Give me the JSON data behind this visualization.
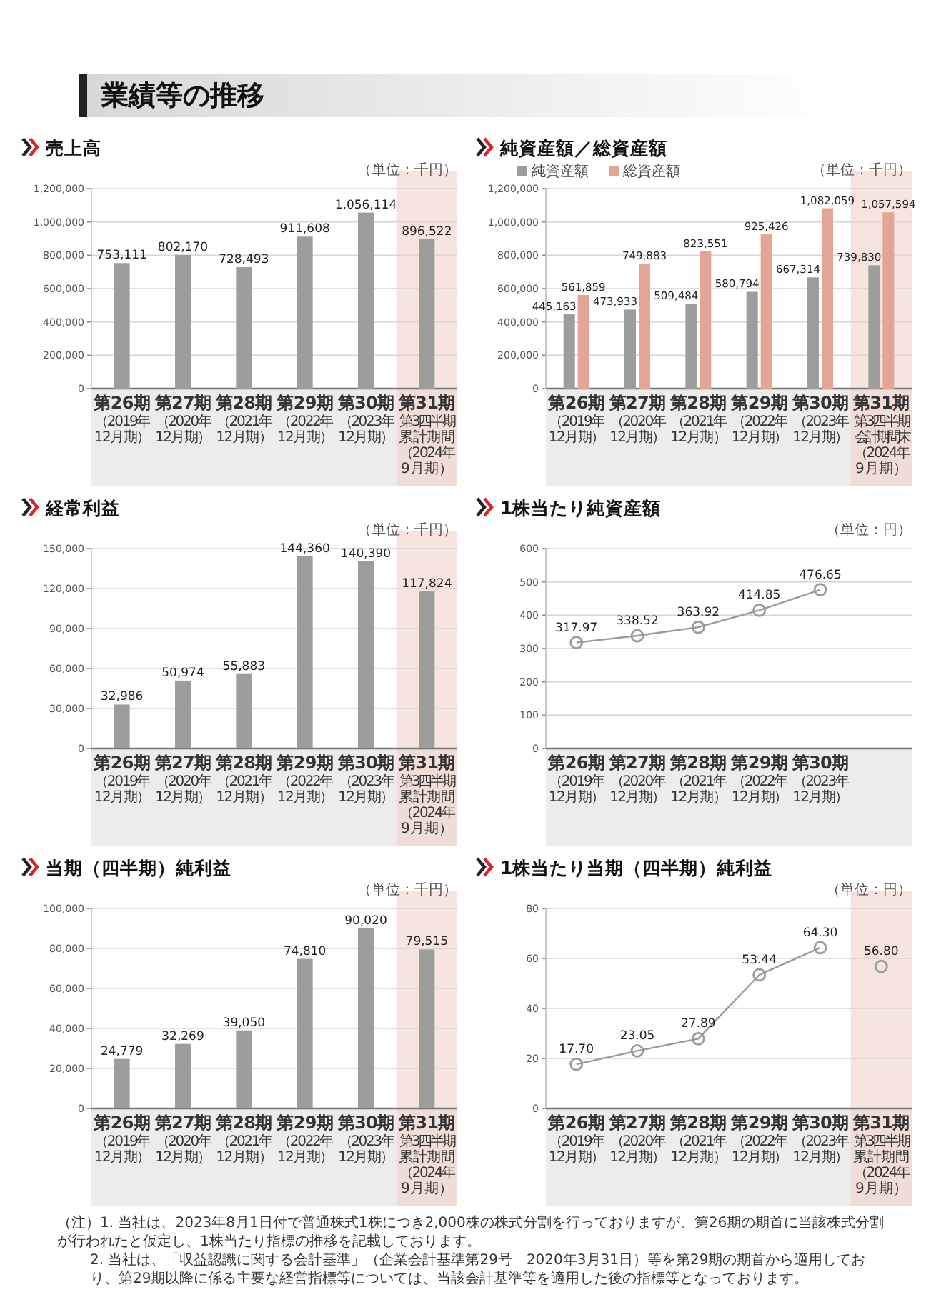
{
  "chart_data": [
    {
      "type": "other",
      "title": "業績等の推移"
    },
    {
      "type": "bar",
      "title": "売上高",
      "categories": [
        "第26期（2019年12月期）",
        "第27期（2020年12月期）",
        "第28期（2021年12月期）",
        "第29期（2022年12月期）",
        "第30期（2023年12月期）",
        "第31期第3四半期累計期間（2024年9月期）"
      ],
      "series": [
        {
          "color": "#9d9d9d",
          "values": [
            753111,
            802170,
            728493,
            911608,
            1056114,
            896522
          ],
          "value_labels": [
            "753,111",
            "802,170",
            "728,493",
            "911,608",
            "1,056,114",
            "896,522"
          ]
        }
      ],
      "ylim": [
        0,
        1200000
      ],
      "yticks": [
        0,
        {
          "value": 200000,
          "label": "200,000"
        },
        {
          "value": 400000,
          "label": "400,000"
        },
        {
          "value": 600000,
          "label": "600,000"
        },
        {
          "value": 800000,
          "label": "800,000"
        },
        {
          "value": 1000000,
          "label": "1,000,000"
        },
        {
          "value": 1200000,
          "label": "1,200,000"
        }
      ],
      "grid": "y",
      "annotations": [
        "（単位：千円）"
      ],
      "bands": [
        {
          "axis": "x",
          "from": "第31期第3四半期累計期間（2024年9月期）",
          "to": "第31期第3四半期累計期間（2024年9月期）",
          "color": "#f5d5cd"
        }
      ]
    },
    {
      "type": "bar",
      "title": "純資産額／総資産額",
      "categories": [
        "第26期（2019年12月期）",
        "第27期（2020年12月期）",
        "第28期（2021年12月期）",
        "第29期（2022年12月期）",
        "第30期（2023年12月期）",
        "第31期第3四半期会計期間末（2024年9月期）"
      ],
      "series": [
        {
          "name": "純資産額",
          "color": "#9d9d9d",
          "values": [
            445163,
            473933,
            509484,
            580794,
            667314,
            739830
          ],
          "value_labels": [
            "445,163",
            "473,933",
            "509,484",
            "580,794",
            "667,314",
            "739,830"
          ]
        },
        {
          "name": "総資産額",
          "color": "#e3a597",
          "values": [
            561859,
            749883,
            823551,
            925426,
            1082059,
            1057594
          ],
          "value_labels": [
            "561,859",
            "749,883",
            "823,551",
            "925,426",
            "1,082,059",
            "1,057,594"
          ]
        }
      ],
      "ylim": [
        0,
        1200000
      ],
      "yticks": [
        0,
        {
          "value": 200000,
          "label": "200,000"
        },
        {
          "value": 400000,
          "label": "400,000"
        },
        {
          "value": 600000,
          "label": "600,000"
        },
        {
          "value": 800000,
          "label": "800,000"
        },
        {
          "value": 1000000,
          "label": "1,000,000"
        },
        {
          "value": 1200000,
          "label": "1,200,000"
        }
      ],
      "grid": "y",
      "legend": "top left",
      "annotations": [
        "（単位：千円）"
      ],
      "bands": [
        {
          "axis": "x",
          "from": "第31期第3四半期会計期間末（2024年9月期）",
          "to": "第31期第3四半期会計期間末（2024年9月期）",
          "color": "#f5d5cd"
        }
      ]
    },
    {
      "type": "bar",
      "title": "経常利益",
      "categories": [
        "第26期（2019年12月期）",
        "第27期（2020年12月期）",
        "第28期（2021年12月期）",
        "第29期（2022年12月期）",
        "第30期（2023年12月期）",
        "第31期第3四半期累計期間（2024年9月期）"
      ],
      "series": [
        {
          "color": "#9d9d9d",
          "values": [
            32986,
            50974,
            55883,
            144360,
            140390,
            117824
          ],
          "value_labels": [
            "32,986",
            "50,974",
            "55,883",
            "144,360",
            "140,390",
            "117,824"
          ]
        }
      ],
      "ylim": [
        0,
        150000
      ],
      "yticks": [
        0,
        {
          "value": 30000,
          "label": "30,000"
        },
        {
          "value": 60000,
          "label": "60,000"
        },
        {
          "value": 90000,
          "label": "90,000"
        },
        {
          "value": 120000,
          "label": "120,000"
        },
        {
          "value": 150000,
          "label": "150,000"
        }
      ],
      "grid": "y",
      "annotations": [
        "（単位：千円）"
      ],
      "bands": [
        {
          "axis": "x",
          "from": "第31期第3四半期累計期間（2024年9月期）",
          "to": "第31期第3四半期累計期間（2024年9月期）",
          "color": "#f5d5cd"
        }
      ]
    },
    {
      "type": "line",
      "title": "1株当たり純資産額",
      "categories": [
        "第26期（2019年12月期）",
        "第27期（2020年12月期）",
        "第28期（2021年12月期）",
        "第29期（2022年12月期）",
        "第30期（2023年12月期）",
        null
      ],
      "series": [
        {
          "color": "#9a9a9a",
          "values": [
            317.97,
            338.52,
            363.92,
            414.85,
            476.65,
            null
          ],
          "value_labels": [
            "317.97",
            "338.52",
            "363.92",
            "414.85",
            "476.65",
            null
          ]
        }
      ],
      "marker": "circle",
      "ylim": [
        0,
        600
      ],
      "yticks": [
        0,
        100,
        200,
        300,
        400,
        500,
        600
      ],
      "grid": "y",
      "annotations": [
        "（単位：円）"
      ]
    },
    {
      "type": "bar",
      "title": "当期（四半期）純利益",
      "categories": [
        "第26期（2019年12月期）",
        "第27期（2020年12月期）",
        "第28期（2021年12月期）",
        "第29期（2022年12月期）",
        "第30期（2023年12月期）",
        "第31期第3四半期累計期間（2024年9月期）"
      ],
      "series": [
        {
          "color": "#9d9d9d",
          "values": [
            24779,
            32269,
            39050,
            74810,
            90020,
            79515
          ],
          "value_labels": [
            "24,779",
            "32,269",
            "39,050",
            "74,810",
            "90,020",
            "79,515"
          ]
        }
      ],
      "ylim": [
        0,
        100000
      ],
      "yticks": [
        0,
        {
          "value": 20000,
          "label": "20,000"
        },
        {
          "value": 40000,
          "label": "40,000"
        },
        {
          "value": 60000,
          "label": "60,000"
        },
        {
          "value": 80000,
          "label": "80,000"
        },
        {
          "value": 100000,
          "label": "100,000"
        }
      ],
      "grid": "y",
      "annotations": [
        "（単位：千円）"
      ],
      "bands": [
        {
          "axis": "x",
          "from": "第31期第3四半期累計期間（2024年9月期）",
          "to": "第31期第3四半期累計期間（2024年9月期）",
          "color": "#f5d5cd"
        }
      ]
    },
    {
      "type": "line",
      "title": "1株当たり当期（四半期）純利益",
      "categories": [
        "第26期（2019年12月期）",
        "第27期（2020年12月期）",
        "第28期（2021年12月期）",
        "第29期（2022年12月期）",
        "第30期（2023年12月期）",
        "第31期第3四半期累計期間（2024年9月期）"
      ],
      "series": [
        {
          "color": "#9a9a9a",
          "values": [
            17.7,
            23.05,
            27.89,
            53.44,
            64.3,
            null
          ],
          "value_labels": [
            "17.70",
            "23.05",
            "27.89",
            "53.44",
            "64.30",
            null
          ]
        },
        {
          "color": "#9a9a9a",
          "values": [
            null,
            null,
            null,
            null,
            null,
            56.8
          ],
          "value_labels": [
            null,
            null,
            null,
            null,
            null,
            "56.80"
          ]
        }
      ],
      "marker": "circle",
      "ylim": [
        0,
        80
      ],
      "yticks": [
        0,
        20,
        40,
        60,
        80
      ],
      "grid": "y",
      "annotations": [
        "（単位：円）"
      ],
      "bands": [
        {
          "axis": "x",
          "from": "第31期第3四半期累計期間（2024年9月期）",
          "to": "第31期第3四半期累計期間（2024年9月期）",
          "color": "#f5d5cd"
        }
      ]
    },
    {
      "type": "other",
      "annotations": [
        "（注）1. 当社は、2023年8月1日付で普通株式1株につき2,000株の株式分割を行っておりますが、第26期の期首に当該株式分割が行われたと仮定し、1株当たり指標の推移を記載しております。",
        "2. 当社は、「収益認識に関する会計基準」（企業会計基準第29号　2020年3月31日）等を第29期の期首から適用しており、第29期以降に係る主要な経営指標等については、当該会計基準等を適用した後の指標等となっております。"
      ]
    }
  ]
}
